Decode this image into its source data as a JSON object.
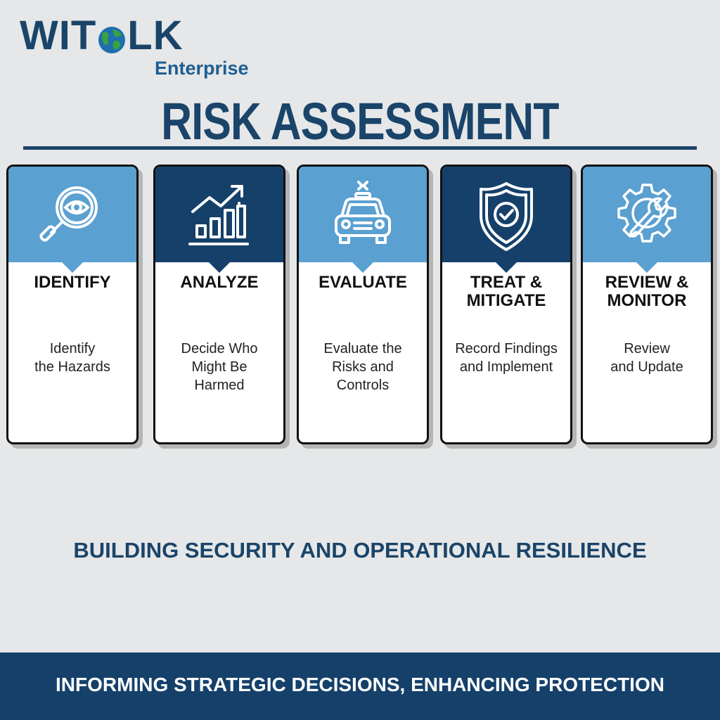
{
  "brand": {
    "name_part1": "WIT",
    "name_part2": "LK",
    "subtitle": "Enterprise",
    "globe_icon": "globe-icon"
  },
  "title": "RISK ASSESSMENT",
  "steps": [
    {
      "title": "IDENTIFY",
      "description": "Identify\nthe Hazards",
      "icon": "magnifier-eye-icon",
      "theme": "light"
    },
    {
      "title": "ANALYZE",
      "description": "Decide Who\nMight Be\nHarmed",
      "icon": "growth-chart-icon",
      "theme": "dark"
    },
    {
      "title": "EVALUATE",
      "description": "Evaluate the\nRisks and\nControls",
      "icon": "car-icon",
      "theme": "light"
    },
    {
      "title": "TREAT &\nMITIGATE",
      "description": "Record Findings\nand Implement",
      "icon": "shield-check-icon",
      "theme": "dark"
    },
    {
      "title": "REVIEW &\nMONITOR",
      "description": "Review\nand Update",
      "icon": "gear-wrench-icon",
      "theme": "light"
    }
  ],
  "tagline": "BUILDING SECURITY AND OPERATIONAL RESILIENCE",
  "footer": "INFORMING STRATEGIC DECISIONS, ENHANCING PROTECTION",
  "colors": {
    "navy": "#15406a",
    "light_blue": "#5aa0d1",
    "background": "#e6e7e8"
  }
}
